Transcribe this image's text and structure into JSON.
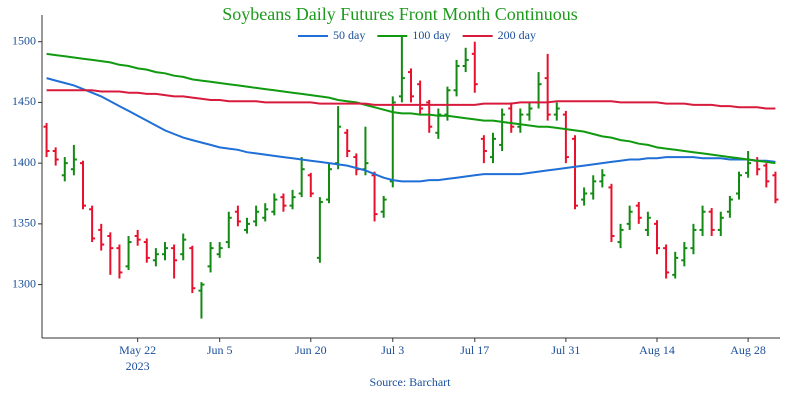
{
  "chart_data": {
    "type": "ohlc",
    "title": "Soybeans Daily Futures Front Month Continuous",
    "source": "Source: Barchart",
    "x": [
      "2023-05-08",
      "2023-05-09",
      "2023-05-10",
      "2023-05-11",
      "2023-05-12",
      "2023-05-15",
      "2023-05-16",
      "2023-05-17",
      "2023-05-18",
      "2023-05-19",
      "2023-05-22",
      "2023-05-23",
      "2023-05-24",
      "2023-05-25",
      "2023-05-26",
      "2023-05-30",
      "2023-05-31",
      "2023-06-01",
      "2023-06-02",
      "2023-06-05",
      "2023-06-06",
      "2023-06-07",
      "2023-06-08",
      "2023-06-09",
      "2023-06-12",
      "2023-06-13",
      "2023-06-14",
      "2023-06-15",
      "2023-06-16",
      "2023-06-20",
      "2023-06-21",
      "2023-06-22",
      "2023-06-23",
      "2023-06-26",
      "2023-06-27",
      "2023-06-28",
      "2023-06-29",
      "2023-06-30",
      "2023-07-03",
      "2023-07-05",
      "2023-07-06",
      "2023-07-07",
      "2023-07-10",
      "2023-07-11",
      "2023-07-12",
      "2023-07-13",
      "2023-07-14",
      "2023-07-17",
      "2023-07-18",
      "2023-07-19",
      "2023-07-20",
      "2023-07-21",
      "2023-07-24",
      "2023-07-25",
      "2023-07-26",
      "2023-07-27",
      "2023-07-28",
      "2023-07-31",
      "2023-08-01",
      "2023-08-02",
      "2023-08-03",
      "2023-08-04",
      "2023-08-07",
      "2023-08-08",
      "2023-08-09",
      "2023-08-10",
      "2023-08-11",
      "2023-08-14",
      "2023-08-15",
      "2023-08-16",
      "2023-08-17",
      "2023-08-18",
      "2023-08-21",
      "2023-08-22",
      "2023-08-23",
      "2023-08-24",
      "2023-08-25",
      "2023-08-28",
      "2023-08-29",
      "2023-08-30",
      "2023-08-31"
    ],
    "open": [
      1430,
      1410,
      1390,
      1395,
      1400,
      1362,
      1345,
      1340,
      1330,
      1315,
      1340,
      1335,
      1320,
      1325,
      1330,
      1325,
      1330,
      1295,
      1315,
      1325,
      1335,
      1360,
      1345,
      1352,
      1355,
      1360,
      1372,
      1365,
      1375,
      1390,
      1322,
      1370,
      1400,
      1425,
      1405,
      1395,
      1390,
      1360,
      1385,
      1455,
      1475,
      1465,
      1450,
      1425,
      1440,
      1460,
      1480,
      1490,
      1420,
      1405,
      1415,
      1445,
      1430,
      1440,
      1450,
      1470,
      1440,
      1440,
      1420,
      1370,
      1375,
      1385,
      1380,
      1335,
      1350,
      1365,
      1345,
      1350,
      1330,
      1308,
      1320,
      1330,
      1345,
      1360,
      1345,
      1360,
      1375,
      1392,
      1402,
      1398,
      1390
    ],
    "high": [
      1433,
      1413,
      1405,
      1415,
      1402,
      1365,
      1350,
      1343,
      1333,
      1340,
      1345,
      1338,
      1330,
      1335,
      1333,
      1342,
      1332,
      1302,
      1335,
      1335,
      1360,
      1365,
      1355,
      1365,
      1367,
      1375,
      1375,
      1378,
      1405,
      1392,
      1372,
      1400,
      1447,
      1428,
      1408,
      1430,
      1393,
      1373,
      1455,
      1505,
      1478,
      1468,
      1452,
      1445,
      1463,
      1485,
      1495,
      1500,
      1423,
      1425,
      1445,
      1450,
      1445,
      1450,
      1475,
      1490,
      1450,
      1443,
      1423,
      1380,
      1390,
      1395,
      1383,
      1350,
      1365,
      1368,
      1360,
      1353,
      1333,
      1327,
      1335,
      1350,
      1365,
      1363,
      1360,
      1373,
      1393,
      1410,
      1405,
      1400,
      1393
    ],
    "low": [
      1405,
      1398,
      1385,
      1390,
      1362,
      1335,
      1328,
      1308,
      1305,
      1312,
      1332,
      1318,
      1315,
      1320,
      1305,
      1320,
      1293,
      1272,
      1310,
      1322,
      1330,
      1348,
      1342,
      1348,
      1352,
      1357,
      1360,
      1362,
      1372,
      1372,
      1318,
      1367,
      1395,
      1405,
      1390,
      1390,
      1352,
      1355,
      1380,
      1450,
      1450,
      1440,
      1425,
      1420,
      1435,
      1455,
      1475,
      1458,
      1400,
      1400,
      1410,
      1425,
      1425,
      1435,
      1445,
      1435,
      1435,
      1400,
      1362,
      1365,
      1370,
      1380,
      1335,
      1330,
      1345,
      1350,
      1340,
      1325,
      1305,
      1305,
      1315,
      1325,
      1340,
      1340,
      1340,
      1355,
      1370,
      1388,
      1390,
      1380,
      1367
    ],
    "close": [
      1410,
      1403,
      1400,
      1403,
      1365,
      1338,
      1333,
      1330,
      1310,
      1335,
      1337,
      1322,
      1325,
      1330,
      1320,
      1337,
      1297,
      1300,
      1330,
      1330,
      1355,
      1352,
      1350,
      1360,
      1362,
      1370,
      1365,
      1372,
      1395,
      1375,
      1368,
      1395,
      1430,
      1410,
      1395,
      1400,
      1358,
      1370,
      1450,
      1470,
      1455,
      1445,
      1430,
      1440,
      1460,
      1480,
      1485,
      1465,
      1410,
      1420,
      1440,
      1430,
      1440,
      1445,
      1465,
      1440,
      1445,
      1405,
      1365,
      1375,
      1385,
      1390,
      1340,
      1345,
      1360,
      1355,
      1355,
      1330,
      1310,
      1322,
      1330,
      1345,
      1360,
      1345,
      1355,
      1370,
      1390,
      1400,
      1395,
      1385,
      1370
    ],
    "up_color": "#138a13",
    "down_color": "#e8112d",
    "series": [
      {
        "name": "50 day",
        "color": "#1f6fd6",
        "values": [
          1470,
          1468,
          1466,
          1464,
          1461,
          1458,
          1455,
          1451,
          1447,
          1443,
          1439,
          1435,
          1431,
          1427,
          1424,
          1421,
          1419,
          1417,
          1415,
          1413,
          1412,
          1411,
          1409,
          1408,
          1407,
          1406,
          1405,
          1404,
          1403,
          1402,
          1401,
          1400,
          1399,
          1398,
          1396,
          1394,
          1391,
          1388,
          1386,
          1385,
          1385,
          1385,
          1386,
          1386,
          1387,
          1388,
          1389,
          1390,
          1391,
          1391,
          1391,
          1391,
          1391,
          1392,
          1393,
          1394,
          1395,
          1396,
          1397,
          1398,
          1399,
          1400,
          1401,
          1402,
          1403,
          1403,
          1404,
          1404,
          1405,
          1405,
          1405,
          1405,
          1404,
          1404,
          1404,
          1403,
          1403,
          1403,
          1402,
          1402,
          1401
        ]
      },
      {
        "name": "100 day",
        "color": "#109a10",
        "values": [
          1490,
          1489,
          1488,
          1487,
          1486,
          1485,
          1484,
          1483,
          1481,
          1480,
          1478,
          1477,
          1475,
          1474,
          1472,
          1471,
          1469,
          1468,
          1467,
          1466,
          1465,
          1464,
          1463,
          1462,
          1461,
          1460,
          1459,
          1458,
          1457,
          1456,
          1455,
          1454,
          1452,
          1451,
          1450,
          1448,
          1446,
          1444,
          1442,
          1441,
          1441,
          1440,
          1440,
          1439,
          1439,
          1438,
          1437,
          1436,
          1435,
          1435,
          1434,
          1433,
          1432,
          1431,
          1430,
          1430,
          1429,
          1428,
          1427,
          1426,
          1424,
          1422,
          1421,
          1419,
          1418,
          1416,
          1415,
          1413,
          1412,
          1411,
          1410,
          1409,
          1408,
          1407,
          1406,
          1405,
          1404,
          1403,
          1402,
          1401,
          1400
        ]
      },
      {
        "name": "200 day",
        "color": "#d81b3c",
        "values": [
          1460,
          1460,
          1460,
          1460,
          1460,
          1460,
          1459,
          1459,
          1459,
          1458,
          1458,
          1457,
          1457,
          1456,
          1455,
          1455,
          1454,
          1453,
          1452,
          1452,
          1451,
          1451,
          1451,
          1451,
          1450,
          1450,
          1450,
          1450,
          1450,
          1450,
          1449,
          1449,
          1449,
          1449,
          1449,
          1449,
          1448,
          1448,
          1448,
          1448,
          1448,
          1448,
          1448,
          1448,
          1448,
          1448,
          1448,
          1448,
          1449,
          1449,
          1449,
          1449,
          1450,
          1450,
          1450,
          1450,
          1451,
          1451,
          1451,
          1451,
          1451,
          1451,
          1451,
          1450,
          1450,
          1450,
          1450,
          1450,
          1449,
          1449,
          1449,
          1448,
          1448,
          1448,
          1447,
          1447,
          1446,
          1446,
          1446,
          1445,
          1445
        ]
      }
    ],
    "ylim": [
      1256,
      1522
    ],
    "yticks": [
      1300,
      1350,
      1400,
      1450,
      1500
    ],
    "xticks": [
      {
        "value": "2023-05-22",
        "label": "May 22"
      },
      {
        "value": "2023-06-05",
        "label": "Jun 5"
      },
      {
        "value": "2023-06-20",
        "label": "Jun 20"
      },
      {
        "value": "2023-07-03",
        "label": "Jul 3"
      },
      {
        "value": "2023-07-17",
        "label": "Jul 17"
      },
      {
        "value": "2023-07-31",
        "label": "Jul 31"
      },
      {
        "value": "2023-08-14",
        "label": "Aug 14"
      },
      {
        "value": "2023-08-28",
        "label": "Aug 28"
      }
    ],
    "x_year_label": "2023"
  }
}
